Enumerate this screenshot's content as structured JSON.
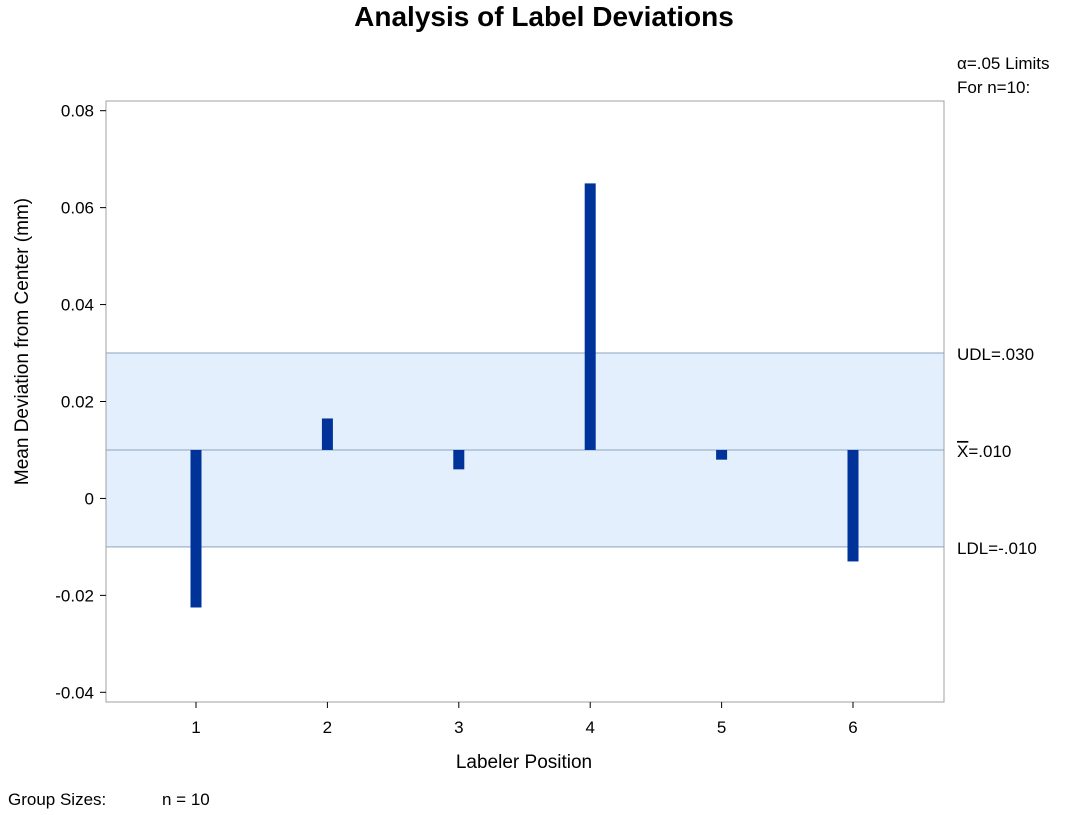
{
  "chart_data": {
    "type": "bar",
    "title": "Analysis of Label Deviations",
    "xlabel": "Labeler Position",
    "ylabel": "Mean Deviation from Center (mm)",
    "categories": [
      "1",
      "2",
      "3",
      "4",
      "5",
      "6"
    ],
    "values": [
      -0.0225,
      0.0165,
      0.006,
      0.065,
      0.008,
      -0.013
    ],
    "baseline": 0.01,
    "ylim": [
      -0.042,
      0.082
    ],
    "yticks": [
      0.08,
      0.06,
      0.04,
      0.02,
      0,
      -0.02,
      -0.04
    ],
    "ytick_labels": [
      "0.08",
      "0.06",
      "0.04",
      "0.02",
      "0",
      "-0.02",
      "-0.04"
    ],
    "limits": {
      "header_line1": "α=.05 Limits",
      "header_line2": "For n=10:",
      "udl": 0.03,
      "ldl": -0.01,
      "center": 0.01,
      "udl_label": "UDL=.030",
      "center_label_symbol": "X",
      "center_label_value": "=.010",
      "ldl_label": "LDL=-.010"
    },
    "footer": {
      "label": "Group Sizes:",
      "value": "n = 10"
    },
    "colors": {
      "bar": "#003399",
      "band_fill": "#e3effc",
      "band_line": "#9fb3cc",
      "frame": "#a0a0a0"
    },
    "grid": false
  }
}
